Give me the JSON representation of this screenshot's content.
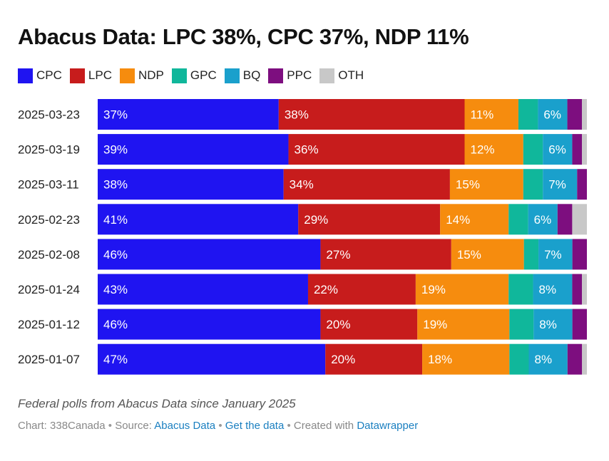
{
  "title": "Abacus Data: LPC 38%, CPC 37%, NDP 11%",
  "description": "Federal polls from Abacus Data since January 2025",
  "footer": {
    "chart_by": "Chart: 338Canada",
    "sep1": "•",
    "source_prefix": "Source:",
    "source_link": "Abacus Data",
    "sep2": "•",
    "data_link": "Get the data",
    "sep3": "•",
    "created_prefix": "Created with",
    "created_link": "Datawrapper"
  },
  "chart_data": {
    "type": "bar",
    "orientation": "horizontal",
    "stacked": true,
    "title": "Abacus Data: LPC 38%, CPC 37%, NDP 11%",
    "xlim": [
      0,
      100
    ],
    "legend_position": "top",
    "categories": [
      "2025-03-23",
      "2025-03-19",
      "2025-03-11",
      "2025-02-23",
      "2025-02-08",
      "2025-01-24",
      "2025-01-12",
      "2025-01-07"
    ],
    "series": [
      {
        "name": "CPC",
        "color": "#1f14f1",
        "values": [
          37,
          39,
          38,
          41,
          46,
          43,
          46,
          47
        ],
        "show_labels": [
          true,
          true,
          true,
          true,
          true,
          true,
          true,
          true
        ]
      },
      {
        "name": "LPC",
        "color": "#c71c1c",
        "values": [
          38,
          36,
          34,
          29,
          27,
          22,
          20,
          20
        ],
        "show_labels": [
          true,
          true,
          true,
          true,
          true,
          true,
          true,
          true
        ]
      },
      {
        "name": "NDP",
        "color": "#f68c0e",
        "values": [
          11,
          12,
          15,
          14,
          15,
          19,
          19,
          18
        ],
        "show_labels": [
          true,
          true,
          true,
          true,
          true,
          true,
          true,
          true
        ]
      },
      {
        "name": "GPC",
        "color": "#10b79b",
        "values": [
          4,
          4,
          4,
          4,
          3,
          5,
          5,
          4
        ],
        "show_labels": [
          false,
          false,
          false,
          false,
          false,
          false,
          false,
          false
        ]
      },
      {
        "name": "BQ",
        "color": "#1aa0cc",
        "values": [
          6,
          6,
          7,
          6,
          7,
          8,
          8,
          8
        ],
        "show_labels": [
          true,
          true,
          true,
          true,
          true,
          true,
          true,
          true
        ]
      },
      {
        "name": "PPC",
        "color": "#7d0e7f",
        "values": [
          3,
          2,
          2,
          3,
          3,
          2,
          3,
          3
        ],
        "show_labels": [
          false,
          false,
          false,
          false,
          false,
          false,
          false,
          false
        ]
      },
      {
        "name": "OTH",
        "color": "#c8c8c8",
        "values": [
          1,
          1,
          0,
          3,
          0,
          1,
          0,
          1
        ],
        "show_labels": [
          false,
          false,
          false,
          false,
          false,
          false,
          false,
          false
        ]
      }
    ]
  }
}
